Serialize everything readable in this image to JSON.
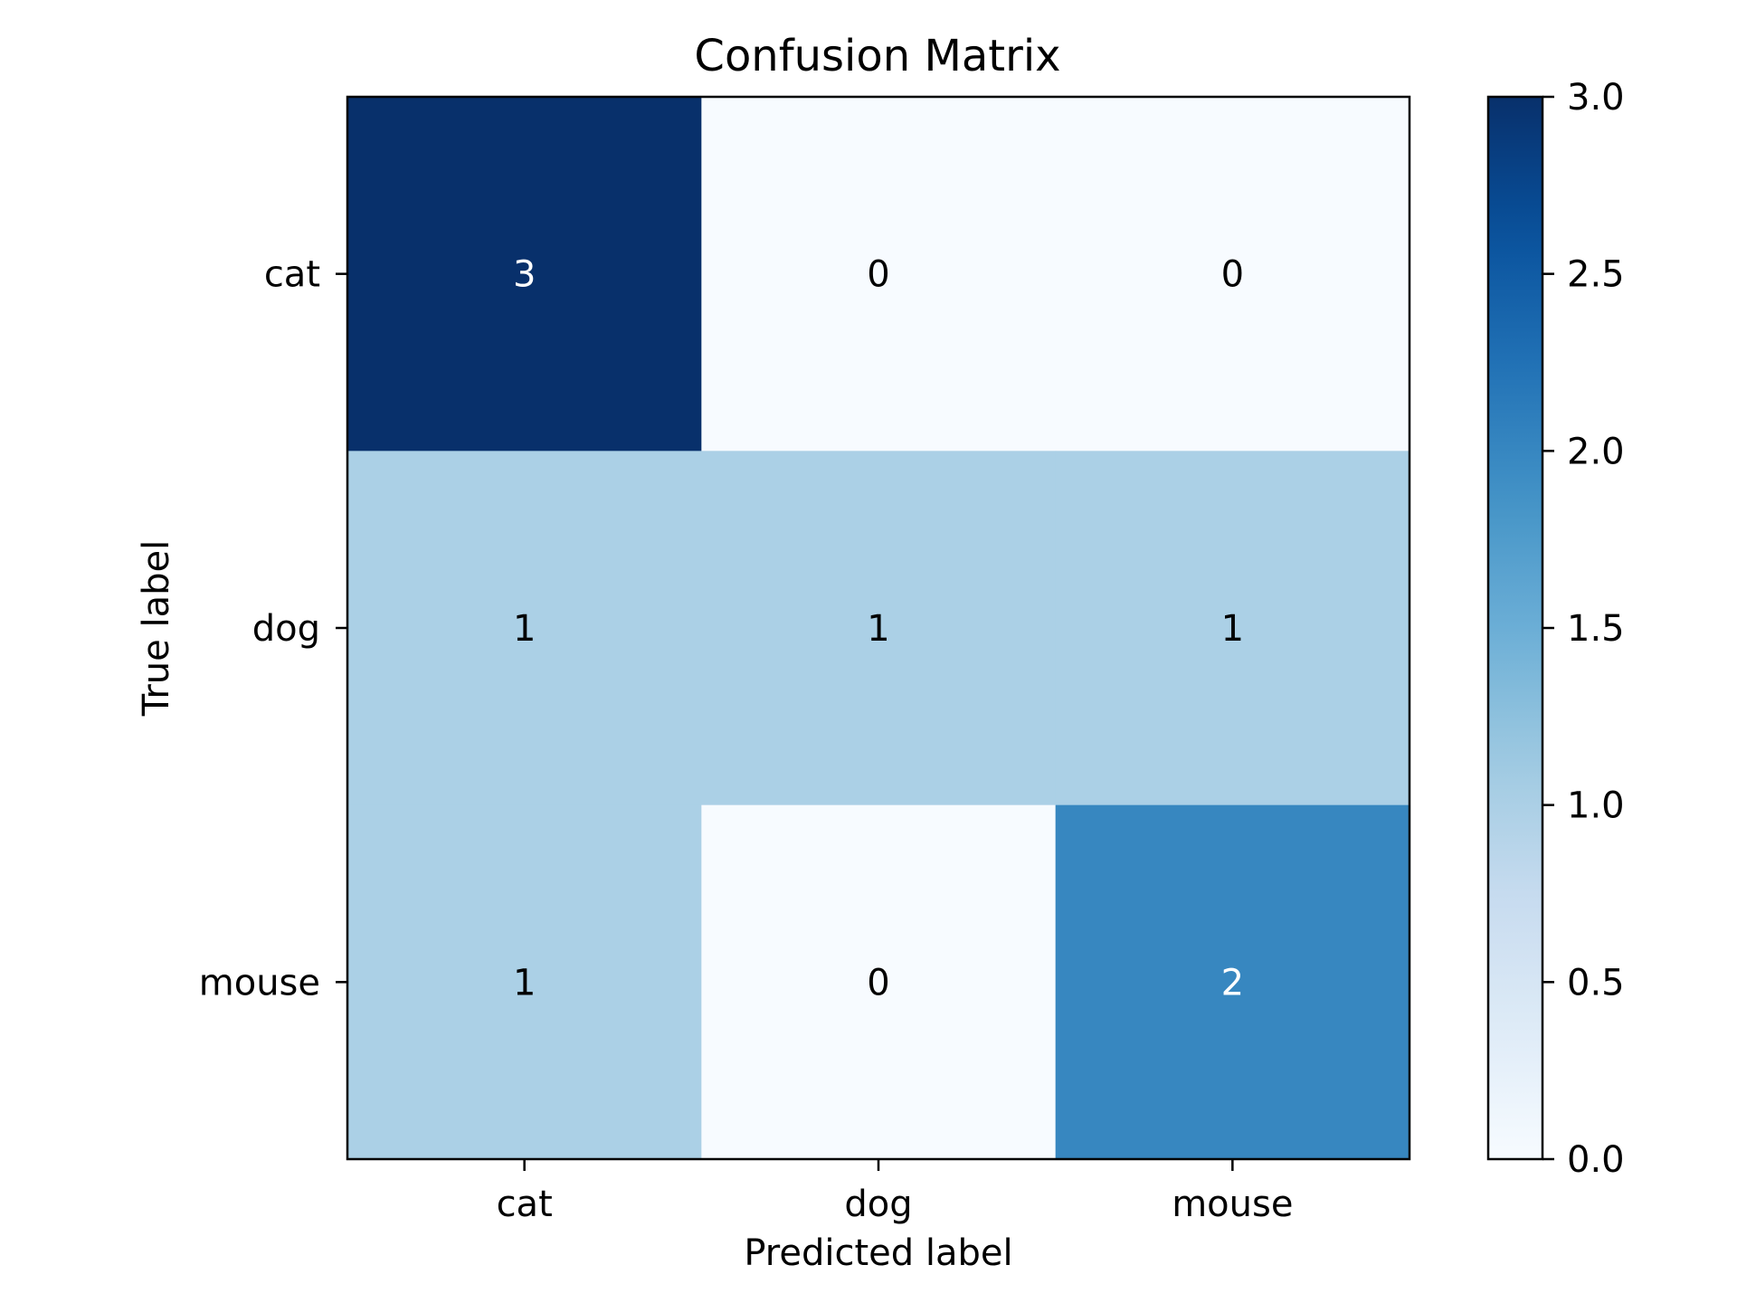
{
  "chart_data": {
    "type": "heatmap",
    "title": "Confusion Matrix",
    "xlabel": "Predicted label",
    "ylabel": "True label",
    "x_categories": [
      "cat",
      "dog",
      "mouse"
    ],
    "y_categories": [
      "cat",
      "dog",
      "mouse"
    ],
    "values": [
      [
        3,
        0,
        0
      ],
      [
        1,
        1,
        1
      ],
      [
        1,
        0,
        2
      ]
    ],
    "colorbar": {
      "range": [
        0,
        3
      ],
      "ticks": [
        "0.0",
        "0.5",
        "1.0",
        "1.5",
        "2.0",
        "2.5",
        "3.0"
      ],
      "colormap": "Blues"
    },
    "colors": {
      "scale_low": "#f7fbff",
      "scale_high": "#08306b",
      "text_dark": "#000000",
      "text_light": "#ffffff",
      "frame": "#000000"
    }
  }
}
